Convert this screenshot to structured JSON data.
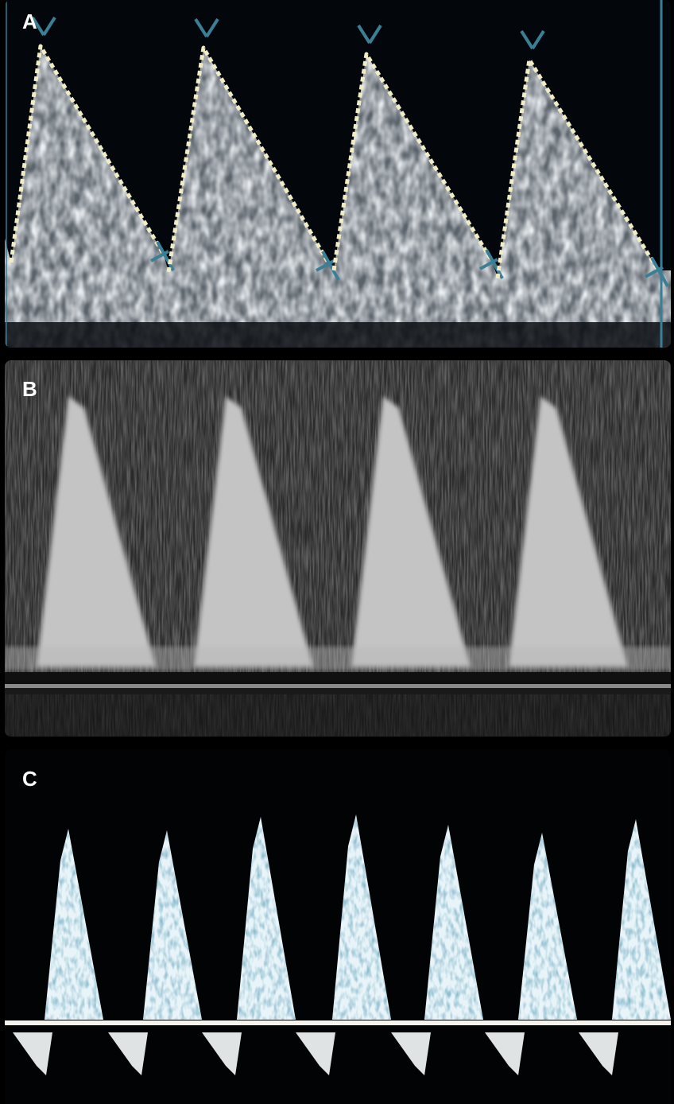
{
  "panels": [
    {
      "id": "A",
      "label": "A",
      "waveform_count": 4,
      "background_color": "#03070c",
      "speckle_color": "#c9d3dc",
      "trace_color": "#f2ecc4",
      "marker_color": "#3a7f96"
    },
    {
      "id": "B",
      "label": "B",
      "waveform_count": 4,
      "background_color": "#2a2a2a",
      "waveform_color": "#c4c4c4",
      "baseline_color": "#8a8a8a"
    },
    {
      "id": "C",
      "label": "C",
      "waveform_count": 7,
      "background_color": "#020305",
      "waveform_color": "#e9f4f9",
      "speckle_color": "#3f7f99",
      "baseline_color": "#f4f4ec"
    }
  ]
}
